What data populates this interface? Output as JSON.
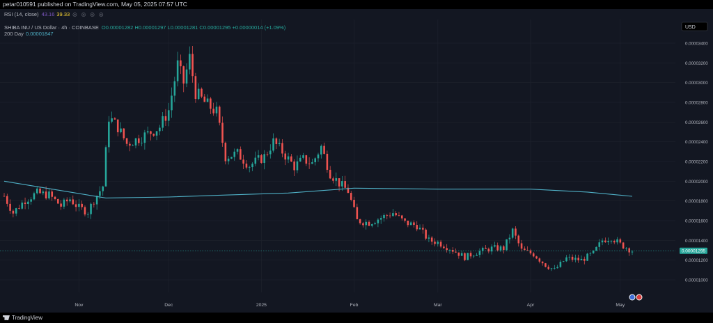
{
  "header": {
    "publish_text": "petar010591 published on TradingView.com, May 05, 2025 07:57 UTC"
  },
  "rsi": {
    "label": "RSI (14, close)",
    "value1": "43.16",
    "value2": "39.33",
    "icons": "◎ ◎ ◎ ◎"
  },
  "legend": {
    "symbol": "SHIBA INU / US Dollar · 4h · COINBASE",
    "ohlc": "O0.00001282 H0.00001297 L0.00001281 C0.00001295 +0.00000014 (+1.09%)",
    "ma_label": "200 Day",
    "ma_value": "0.00001847"
  },
  "currency_button": "USD",
  "footer": {
    "brand": "TradingView"
  },
  "colors": {
    "bg": "#131722",
    "up": "#26a69a",
    "down": "#ef5350",
    "ma": "#4fb0c6",
    "grid": "#1e222d",
    "price_tag": "#26a69a"
  },
  "chart_data": {
    "type": "candlestick",
    "timeframe": "4h",
    "x_tick_labels": [
      "Nov",
      "Dec",
      "2025",
      "Feb",
      "Mar",
      "Apr",
      "May"
    ],
    "y_tick_labels": [
      "0.00003400",
      "0.00003200",
      "0.00003000",
      "0.00002800",
      "0.00002600",
      "0.00002400",
      "0.00002200",
      "0.00002000",
      "0.00001800",
      "0.00001600",
      "0.00001400",
      "0.00001200",
      "0.00001000"
    ],
    "ylim": [
      9.1e-06,
      3.52e-05
    ],
    "last_price": "0.00001295",
    "price_path": [
      {
        "date": "2024-10-07",
        "price": 1.85e-05
      },
      {
        "date": "2024-10-10",
        "price": 1.68e-05
      },
      {
        "date": "2024-10-14",
        "price": 1.81e-05
      },
      {
        "date": "2024-10-18",
        "price": 1.88e-05
      },
      {
        "date": "2024-10-22",
        "price": 1.86e-05
      },
      {
        "date": "2024-10-26",
        "price": 1.75e-05
      },
      {
        "date": "2024-10-29",
        "price": 1.82e-05
      },
      {
        "date": "2024-11-01",
        "price": 1.73e-05
      },
      {
        "date": "2024-11-04",
        "price": 1.69e-05
      },
      {
        "date": "2024-11-06",
        "price": 1.81e-05
      },
      {
        "date": "2024-11-09",
        "price": 1.95e-05
      },
      {
        "date": "2024-11-11",
        "price": 2.65e-05
      },
      {
        "date": "2024-11-14",
        "price": 2.55e-05
      },
      {
        "date": "2024-11-17",
        "price": 2.38e-05
      },
      {
        "date": "2024-11-20",
        "price": 2.42e-05
      },
      {
        "date": "2024-11-24",
        "price": 2.48e-05
      },
      {
        "date": "2024-11-28",
        "price": 2.55e-05
      },
      {
        "date": "2024-12-01",
        "price": 2.72e-05
      },
      {
        "date": "2024-12-04",
        "price": 3.18e-05
      },
      {
        "date": "2024-12-06",
        "price": 3e-05
      },
      {
        "date": "2024-12-08",
        "price": 3.25e-05
      },
      {
        "date": "2024-12-10",
        "price": 2.9e-05
      },
      {
        "date": "2024-12-13",
        "price": 2.8e-05
      },
      {
        "date": "2024-12-17",
        "price": 2.7e-05
      },
      {
        "date": "2024-12-20",
        "price": 2.25e-05
      },
      {
        "date": "2024-12-24",
        "price": 2.28e-05
      },
      {
        "date": "2024-12-28",
        "price": 2.16e-05
      },
      {
        "date": "2025-01-02",
        "price": 2.25e-05
      },
      {
        "date": "2025-01-05",
        "price": 2.4e-05
      },
      {
        "date": "2025-01-08",
        "price": 2.3e-05
      },
      {
        "date": "2025-01-12",
        "price": 2.15e-05
      },
      {
        "date": "2025-01-15",
        "price": 2.22e-05
      },
      {
        "date": "2025-01-18",
        "price": 2.18e-05
      },
      {
        "date": "2025-01-21",
        "price": 2.35e-05
      },
      {
        "date": "2025-01-24",
        "price": 2.08e-05
      },
      {
        "date": "2025-01-27",
        "price": 1.98e-05
      },
      {
        "date": "2025-01-30",
        "price": 1.9e-05
      },
      {
        "date": "2025-02-02",
        "price": 1.6e-05
      },
      {
        "date": "2025-02-06",
        "price": 1.58e-05
      },
      {
        "date": "2025-02-10",
        "price": 1.63e-05
      },
      {
        "date": "2025-02-14",
        "price": 1.68e-05
      },
      {
        "date": "2025-02-18",
        "price": 1.58e-05
      },
      {
        "date": "2025-02-22",
        "price": 1.55e-05
      },
      {
        "date": "2025-02-26",
        "price": 1.4e-05
      },
      {
        "date": "2025-03-01",
        "price": 1.38e-05
      },
      {
        "date": "2025-03-05",
        "price": 1.32e-05
      },
      {
        "date": "2025-03-10",
        "price": 1.23e-05
      },
      {
        "date": "2025-03-14",
        "price": 1.28e-05
      },
      {
        "date": "2025-03-19",
        "price": 1.32e-05
      },
      {
        "date": "2025-03-23",
        "price": 1.32e-05
      },
      {
        "date": "2025-03-26",
        "price": 1.5e-05
      },
      {
        "date": "2025-03-29",
        "price": 1.3e-05
      },
      {
        "date": "2025-04-02",
        "price": 1.26e-05
      },
      {
        "date": "2025-04-06",
        "price": 1.15e-05
      },
      {
        "date": "2025-04-09",
        "price": 1.1e-05
      },
      {
        "date": "2025-04-13",
        "price": 1.22e-05
      },
      {
        "date": "2025-04-18",
        "price": 1.2e-05
      },
      {
        "date": "2025-04-22",
        "price": 1.27e-05
      },
      {
        "date": "2025-04-25",
        "price": 1.4e-05
      },
      {
        "date": "2025-04-28",
        "price": 1.43e-05
      },
      {
        "date": "2025-05-01",
        "price": 1.36e-05
      },
      {
        "date": "2025-05-05",
        "price": 1.295e-05
      }
    ],
    "ma_200": [
      {
        "date": "2024-10-07",
        "price": 2e-05
      },
      {
        "date": "2024-10-25",
        "price": 1.91e-05
      },
      {
        "date": "2024-11-10",
        "price": 1.83e-05
      },
      {
        "date": "2024-12-01",
        "price": 1.84e-05
      },
      {
        "date": "2024-12-20",
        "price": 1.86e-05
      },
      {
        "date": "2025-01-10",
        "price": 1.88e-05
      },
      {
        "date": "2025-02-01",
        "price": 1.93e-05
      },
      {
        "date": "2025-03-01",
        "price": 1.92e-05
      },
      {
        "date": "2025-04-01",
        "price": 1.92e-05
      },
      {
        "date": "2025-04-20",
        "price": 1.89e-05
      },
      {
        "date": "2025-05-05",
        "price": 1.847e-05
      }
    ]
  }
}
